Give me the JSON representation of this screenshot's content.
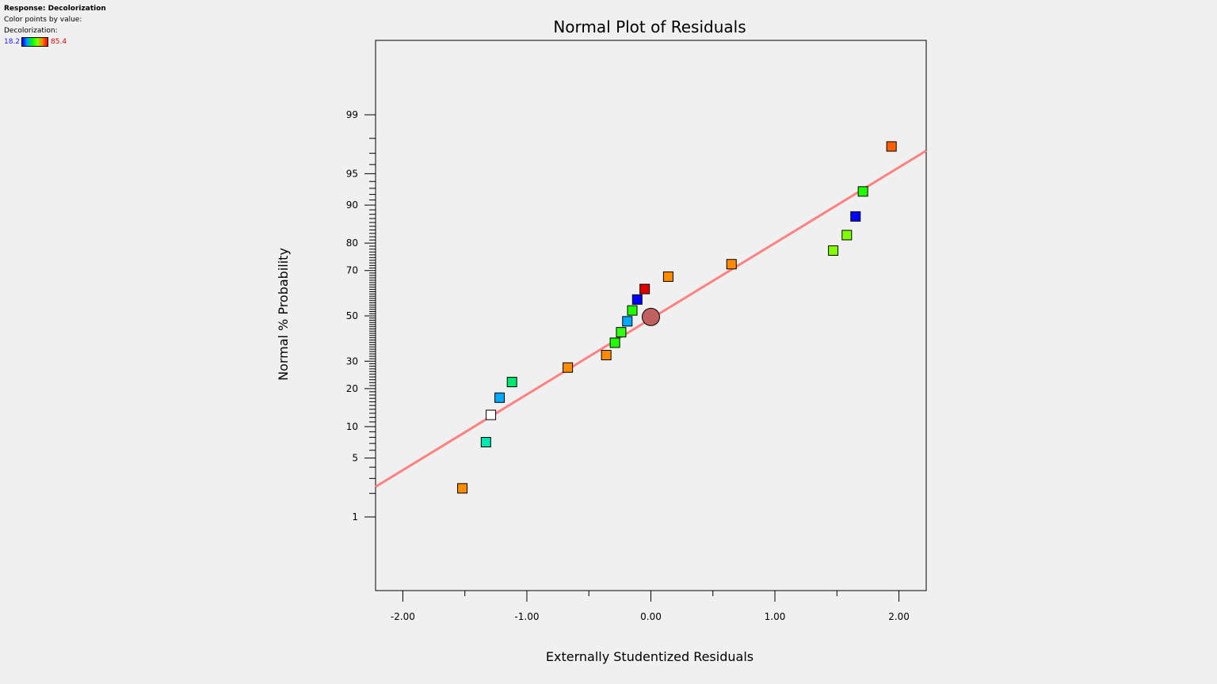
{
  "legend": {
    "response_label": "Response: Decolorization",
    "color_by_label": "Color points by value:",
    "variable_label": "Decolorization:",
    "min_label": "18.2",
    "max_label": "85.4",
    "min_color": "#0000ff",
    "max_color": "#e00000"
  },
  "chart_data": {
    "type": "scatter",
    "title": "Normal Plot of Residuals",
    "xlabel": "Externally Studentized Residuals",
    "ylabel": "Normal % Probability",
    "xlim": [
      -2.22,
      2.22
    ],
    "y_scale": "normal-probability",
    "y_ticks": [
      1,
      5,
      10,
      20,
      30,
      50,
      70,
      80,
      90,
      95,
      99
    ],
    "x_ticks": [
      "-2.00",
      "-1.00",
      "0.00",
      "1.00",
      "2.00"
    ],
    "grid": false,
    "fit_line": {
      "from": [
        -2.22,
        2.4
      ],
      "to": [
        2.22,
        97.2
      ],
      "color": "#ff8080"
    },
    "center_marker": {
      "x": 0.0,
      "y": 49.5,
      "color": "#c06060"
    },
    "points": [
      {
        "x": -1.52,
        "y": 2.3,
        "color": "#ff8c00"
      },
      {
        "x": -1.33,
        "y": 7.2,
        "color": "#00e8b0"
      },
      {
        "x": -1.29,
        "y": 12.6,
        "color": "#ffffff"
      },
      {
        "x": -1.22,
        "y": 17.2,
        "color": "#00a8ff"
      },
      {
        "x": -1.12,
        "y": 22.2,
        "color": "#00e870"
      },
      {
        "x": -0.67,
        "y": 27.5,
        "color": "#ff8c00"
      },
      {
        "x": -0.36,
        "y": 32.5,
        "color": "#ff8c00"
      },
      {
        "x": -0.29,
        "y": 37.8,
        "color": "#20ff00"
      },
      {
        "x": -0.24,
        "y": 42.5,
        "color": "#30ff10"
      },
      {
        "x": -0.19,
        "y": 47.5,
        "color": "#00a8ff"
      },
      {
        "x": -0.15,
        "y": 52.5,
        "color": "#20ff00"
      },
      {
        "x": -0.11,
        "y": 57.5,
        "color": "#0000ff"
      },
      {
        "x": -0.05,
        "y": 62.2,
        "color": "#e00000"
      },
      {
        "x": 0.14,
        "y": 67.5,
        "color": "#ff8c00"
      },
      {
        "x": 0.65,
        "y": 72.5,
        "color": "#ff8c00"
      },
      {
        "x": 1.47,
        "y": 77.5,
        "color": "#80ff00"
      },
      {
        "x": 1.58,
        "y": 82.5,
        "color": "#80ff00"
      },
      {
        "x": 1.65,
        "y": 87.5,
        "color": "#0000ff"
      },
      {
        "x": 1.71,
        "y": 92.5,
        "color": "#20ff00"
      },
      {
        "x": 1.94,
        "y": 97.5,
        "color": "#ff6000"
      }
    ]
  }
}
